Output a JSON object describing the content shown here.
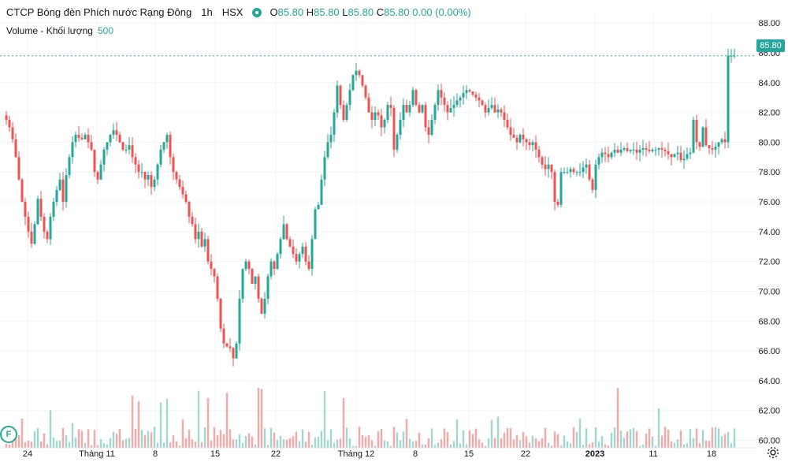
{
  "legend": {
    "symbol_name": "CTCP Bóng đèn Phích nước Rạng Đông",
    "interval": "1h",
    "exchange": "HSX",
    "open_label": "O",
    "open": "85.80",
    "high_label": "H",
    "high": "85.80",
    "low_label": "L",
    "low": "85.80",
    "close_label": "C",
    "close": "85.80",
    "change": "0.00 (0.00%)",
    "volume_label": "Volume - Khối lượng",
    "volume_value": "500"
  },
  "last_price_badge": "85.80",
  "colors": {
    "up": "#26a69a",
    "down": "#ef5350",
    "up_vol": "#9fd6cf",
    "down_vol": "#f5a9a6",
    "grid": "#f0f3fa",
    "axis_text": "#131722"
  },
  "flag_letter": "F",
  "chart_data": {
    "type": "candlestick",
    "y_axis_ticks": [
      "88.00",
      "86.00",
      "84.00",
      "82.00",
      "80.00",
      "78.00",
      "76.00",
      "74.00",
      "72.00",
      "70.00",
      "68.00",
      "66.00",
      "64.00",
      "62.00",
      "60.00"
    ],
    "ylim": [
      59.5,
      88.8
    ],
    "x_axis_ticks": [
      "24",
      "Tháng 11",
      "8",
      "15",
      "22",
      "Tháng 12",
      "8",
      "15",
      "22",
      "2023",
      "11",
      "18"
    ],
    "last_price": 85.8,
    "candles_close_path": [
      [
        0,
        81.8
      ],
      [
        4,
        81.5
      ],
      [
        8,
        81.0
      ],
      [
        12,
        80.2
      ],
      [
        16,
        79.0
      ],
      [
        20,
        77.5
      ],
      [
        24,
        76.0
      ],
      [
        28,
        75.0
      ],
      [
        32,
        74.0
      ],
      [
        36,
        73.2
      ],
      [
        40,
        74.5
      ],
      [
        44,
        76.2
      ],
      [
        48,
        75.0
      ],
      [
        52,
        74.0
      ],
      [
        56,
        73.5
      ],
      [
        60,
        75.0
      ],
      [
        64,
        76.0
      ],
      [
        68,
        76.8
      ],
      [
        72,
        77.5
      ],
      [
        76,
        76.0
      ],
      [
        80,
        77.8
      ],
      [
        84,
        79.0
      ],
      [
        88,
        80.0
      ],
      [
        92,
        80.5
      ],
      [
        96,
        80.3
      ],
      [
        100,
        80.2
      ],
      [
        104,
        80.5
      ],
      [
        108,
        80.0
      ],
      [
        112,
        79.5
      ],
      [
        116,
        78.0
      ],
      [
        120,
        77.5
      ],
      [
        124,
        78.5
      ],
      [
        128,
        79.5
      ],
      [
        132,
        80.0
      ],
      [
        136,
        80.5
      ],
      [
        140,
        80.8
      ],
      [
        144,
        80.5
      ],
      [
        148,
        80.0
      ],
      [
        152,
        79.5
      ],
      [
        156,
        79.5
      ],
      [
        160,
        79.8
      ],
      [
        164,
        79.0
      ],
      [
        168,
        78.5
      ],
      [
        172,
        78.0
      ],
      [
        176,
        78.0
      ],
      [
        180,
        77.5
      ],
      [
        184,
        77.8
      ],
      [
        188,
        77.0
      ],
      [
        192,
        77.5
      ],
      [
        196,
        78.5
      ],
      [
        200,
        79.5
      ],
      [
        204,
        80.0
      ],
      [
        208,
        80.5
      ],
      [
        212,
        79.0
      ],
      [
        216,
        78.0
      ],
      [
        220,
        77.5
      ],
      [
        224,
        77.0
      ],
      [
        228,
        76.5
      ],
      [
        232,
        76.0
      ],
      [
        236,
        75.0
      ],
      [
        240,
        74.5
      ],
      [
        244,
        73.5
      ],
      [
        248,
        74.0
      ],
      [
        252,
        73.0
      ],
      [
        256,
        73.5
      ],
      [
        260,
        72.0
      ],
      [
        264,
        71.5
      ],
      [
        268,
        71.0
      ],
      [
        272,
        69.5
      ],
      [
        276,
        67.5
      ],
      [
        280,
        66.5
      ],
      [
        284,
        66.3
      ],
      [
        288,
        66.2
      ],
      [
        292,
        65.5
      ],
      [
        296,
        66.5
      ],
      [
        300,
        69.5
      ],
      [
        304,
        71.5
      ],
      [
        308,
        72.0
      ],
      [
        312,
        71.5
      ],
      [
        316,
        70.5
      ],
      [
        320,
        71.0
      ],
      [
        324,
        69.5
      ],
      [
        328,
        68.5
      ],
      [
        332,
        69.5
      ],
      [
        336,
        71.0
      ],
      [
        340,
        72.0
      ],
      [
        344,
        71.5
      ],
      [
        348,
        72.5
      ],
      [
        352,
        73.5
      ],
      [
        356,
        74.5
      ],
      [
        360,
        73.5
      ],
      [
        364,
        73.0
      ],
      [
        368,
        72.5
      ],
      [
        372,
        72.0
      ],
      [
        376,
        72.5
      ],
      [
        380,
        73.0
      ],
      [
        384,
        72.0
      ],
      [
        388,
        71.5
      ],
      [
        392,
        73.5
      ],
      [
        396,
        75.5
      ],
      [
        400,
        75.8
      ],
      [
        404,
        77.5
      ],
      [
        408,
        79.0
      ],
      [
        412,
        80.0
      ],
      [
        416,
        80.5
      ],
      [
        420,
        82.0
      ],
      [
        424,
        83.8
      ],
      [
        428,
        82.5
      ],
      [
        432,
        81.5
      ],
      [
        436,
        82.5
      ],
      [
        440,
        83.5
      ],
      [
        444,
        84.5
      ],
      [
        448,
        84.8
      ],
      [
        452,
        84.5
      ],
      [
        456,
        83.8
      ],
      [
        460,
        83.0
      ],
      [
        464,
        82.0
      ],
      [
        468,
        81.5
      ],
      [
        472,
        82.0
      ],
      [
        476,
        81.8
      ],
      [
        480,
        81.0
      ],
      [
        484,
        81.5
      ],
      [
        488,
        82.5
      ],
      [
        492,
        82.3
      ],
      [
        496,
        79.5
      ],
      [
        500,
        80.5
      ],
      [
        504,
        81.5
      ],
      [
        508,
        82.5
      ],
      [
        512,
        82.0
      ],
      [
        516,
        82.5
      ],
      [
        520,
        83.5
      ],
      [
        524,
        82.5
      ],
      [
        528,
        82.0
      ],
      [
        532,
        82.5
      ],
      [
        536,
        81.0
      ],
      [
        540,
        80.5
      ],
      [
        544,
        81.5
      ],
      [
        548,
        82.5
      ],
      [
        552,
        83.5
      ],
      [
        556,
        83.0
      ],
      [
        560,
        82.5
      ],
      [
        564,
        82.0
      ],
      [
        568,
        82.3
      ],
      [
        572,
        82.5
      ],
      [
        576,
        82.8
      ],
      [
        580,
        83.0
      ],
      [
        584,
        83.3
      ],
      [
        588,
        83.5
      ],
      [
        592,
        83.4
      ],
      [
        596,
        83.2
      ],
      [
        600,
        83.0
      ],
      [
        604,
        82.8
      ],
      [
        608,
        82.5
      ],
      [
        612,
        82.0
      ],
      [
        616,
        82.3
      ],
      [
        620,
        82.5
      ],
      [
        624,
        82.0
      ],
      [
        628,
        82.2
      ],
      [
        632,
        82.0
      ],
      [
        636,
        81.5
      ],
      [
        640,
        81.0
      ],
      [
        644,
        80.5
      ],
      [
        648,
        80.3
      ],
      [
        652,
        80.0
      ],
      [
        656,
        80.5
      ],
      [
        660,
        80.2
      ],
      [
        664,
        80.0
      ],
      [
        668,
        79.8
      ],
      [
        672,
        80.0
      ],
      [
        676,
        79.5
      ],
      [
        680,
        79.0
      ],
      [
        684,
        78.5
      ],
      [
        688,
        78.2
      ],
      [
        692,
        78.5
      ],
      [
        696,
        78.0
      ],
      [
        700,
        76.0
      ],
      [
        704,
        75.8
      ],
      [
        708,
        78.0
      ],
      [
        712,
        78.0
      ],
      [
        716,
        78.0
      ],
      [
        720,
        78.2
      ],
      [
        724,
        78.0
      ],
      [
        728,
        78.0
      ],
      [
        732,
        78.0
      ],
      [
        736,
        78.3
      ],
      [
        740,
        78.5
      ],
      [
        744,
        77.5
      ],
      [
        748,
        76.8
      ],
      [
        752,
        78.5
      ],
      [
        756,
        79.0
      ],
      [
        760,
        79.3
      ],
      [
        764,
        79.2
      ],
      [
        768,
        79.0
      ],
      [
        772,
        79.3
      ],
      [
        776,
        79.5
      ],
      [
        780,
        79.3
      ],
      [
        784,
        79.5
      ],
      [
        788,
        79.6
      ],
      [
        792,
        79.4
      ],
      [
        796,
        79.5
      ],
      [
        800,
        79.5
      ],
      [
        804,
        79.3
      ],
      [
        808,
        79.5
      ],
      [
        812,
        79.6
      ],
      [
        816,
        79.5
      ],
      [
        820,
        79.4
      ],
      [
        824,
        79.5
      ],
      [
        828,
        79.5
      ],
      [
        832,
        79.6
      ],
      [
        836,
        79.5
      ],
      [
        840,
        79.4
      ],
      [
        844,
        79.2
      ],
      [
        848,
        79.0
      ],
      [
        852,
        79.2
      ],
      [
        856,
        79.3
      ],
      [
        860,
        78.8
      ],
      [
        864,
        78.9
      ],
      [
        868,
        79.2
      ],
      [
        872,
        79.3
      ],
      [
        876,
        81.5
      ],
      [
        880,
        80.0
      ],
      [
        884,
        79.7
      ],
      [
        888,
        81.0
      ],
      [
        892,
        79.8
      ],
      [
        896,
        79.6
      ],
      [
        900,
        79.5
      ],
      [
        904,
        79.7
      ],
      [
        908,
        80.0
      ],
      [
        912,
        80.2
      ],
      [
        916,
        80.0
      ],
      [
        920,
        85.8
      ],
      [
        924,
        85.8
      ],
      [
        928,
        85.8
      ]
    ],
    "volume_ylim": [
      0,
      6.3
    ]
  }
}
